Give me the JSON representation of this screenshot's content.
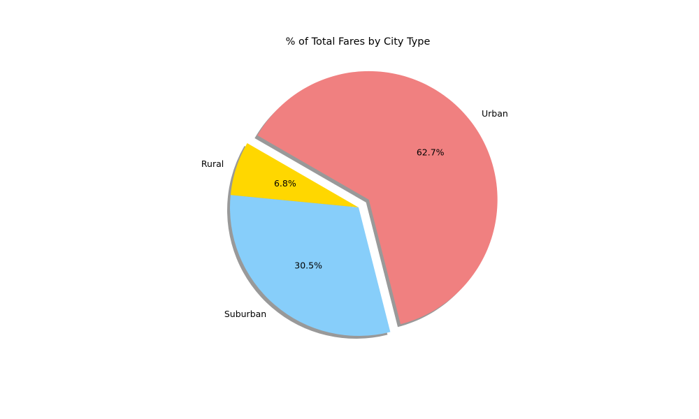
{
  "chart_data": {
    "type": "pie",
    "title": "% of Total Fares by City Type",
    "categories": [
      "Rural",
      "Suburban",
      "Urban"
    ],
    "values": [
      6.8,
      30.5,
      62.7
    ],
    "value_labels": [
      "6.8%",
      "30.5%",
      "62.7%"
    ],
    "colors": [
      "#FFD700",
      "#87CEFA",
      "#F08080"
    ],
    "explode": [
      0,
      0,
      0.1
    ],
    "shadow": true,
    "start_angle_deg": 150
  }
}
